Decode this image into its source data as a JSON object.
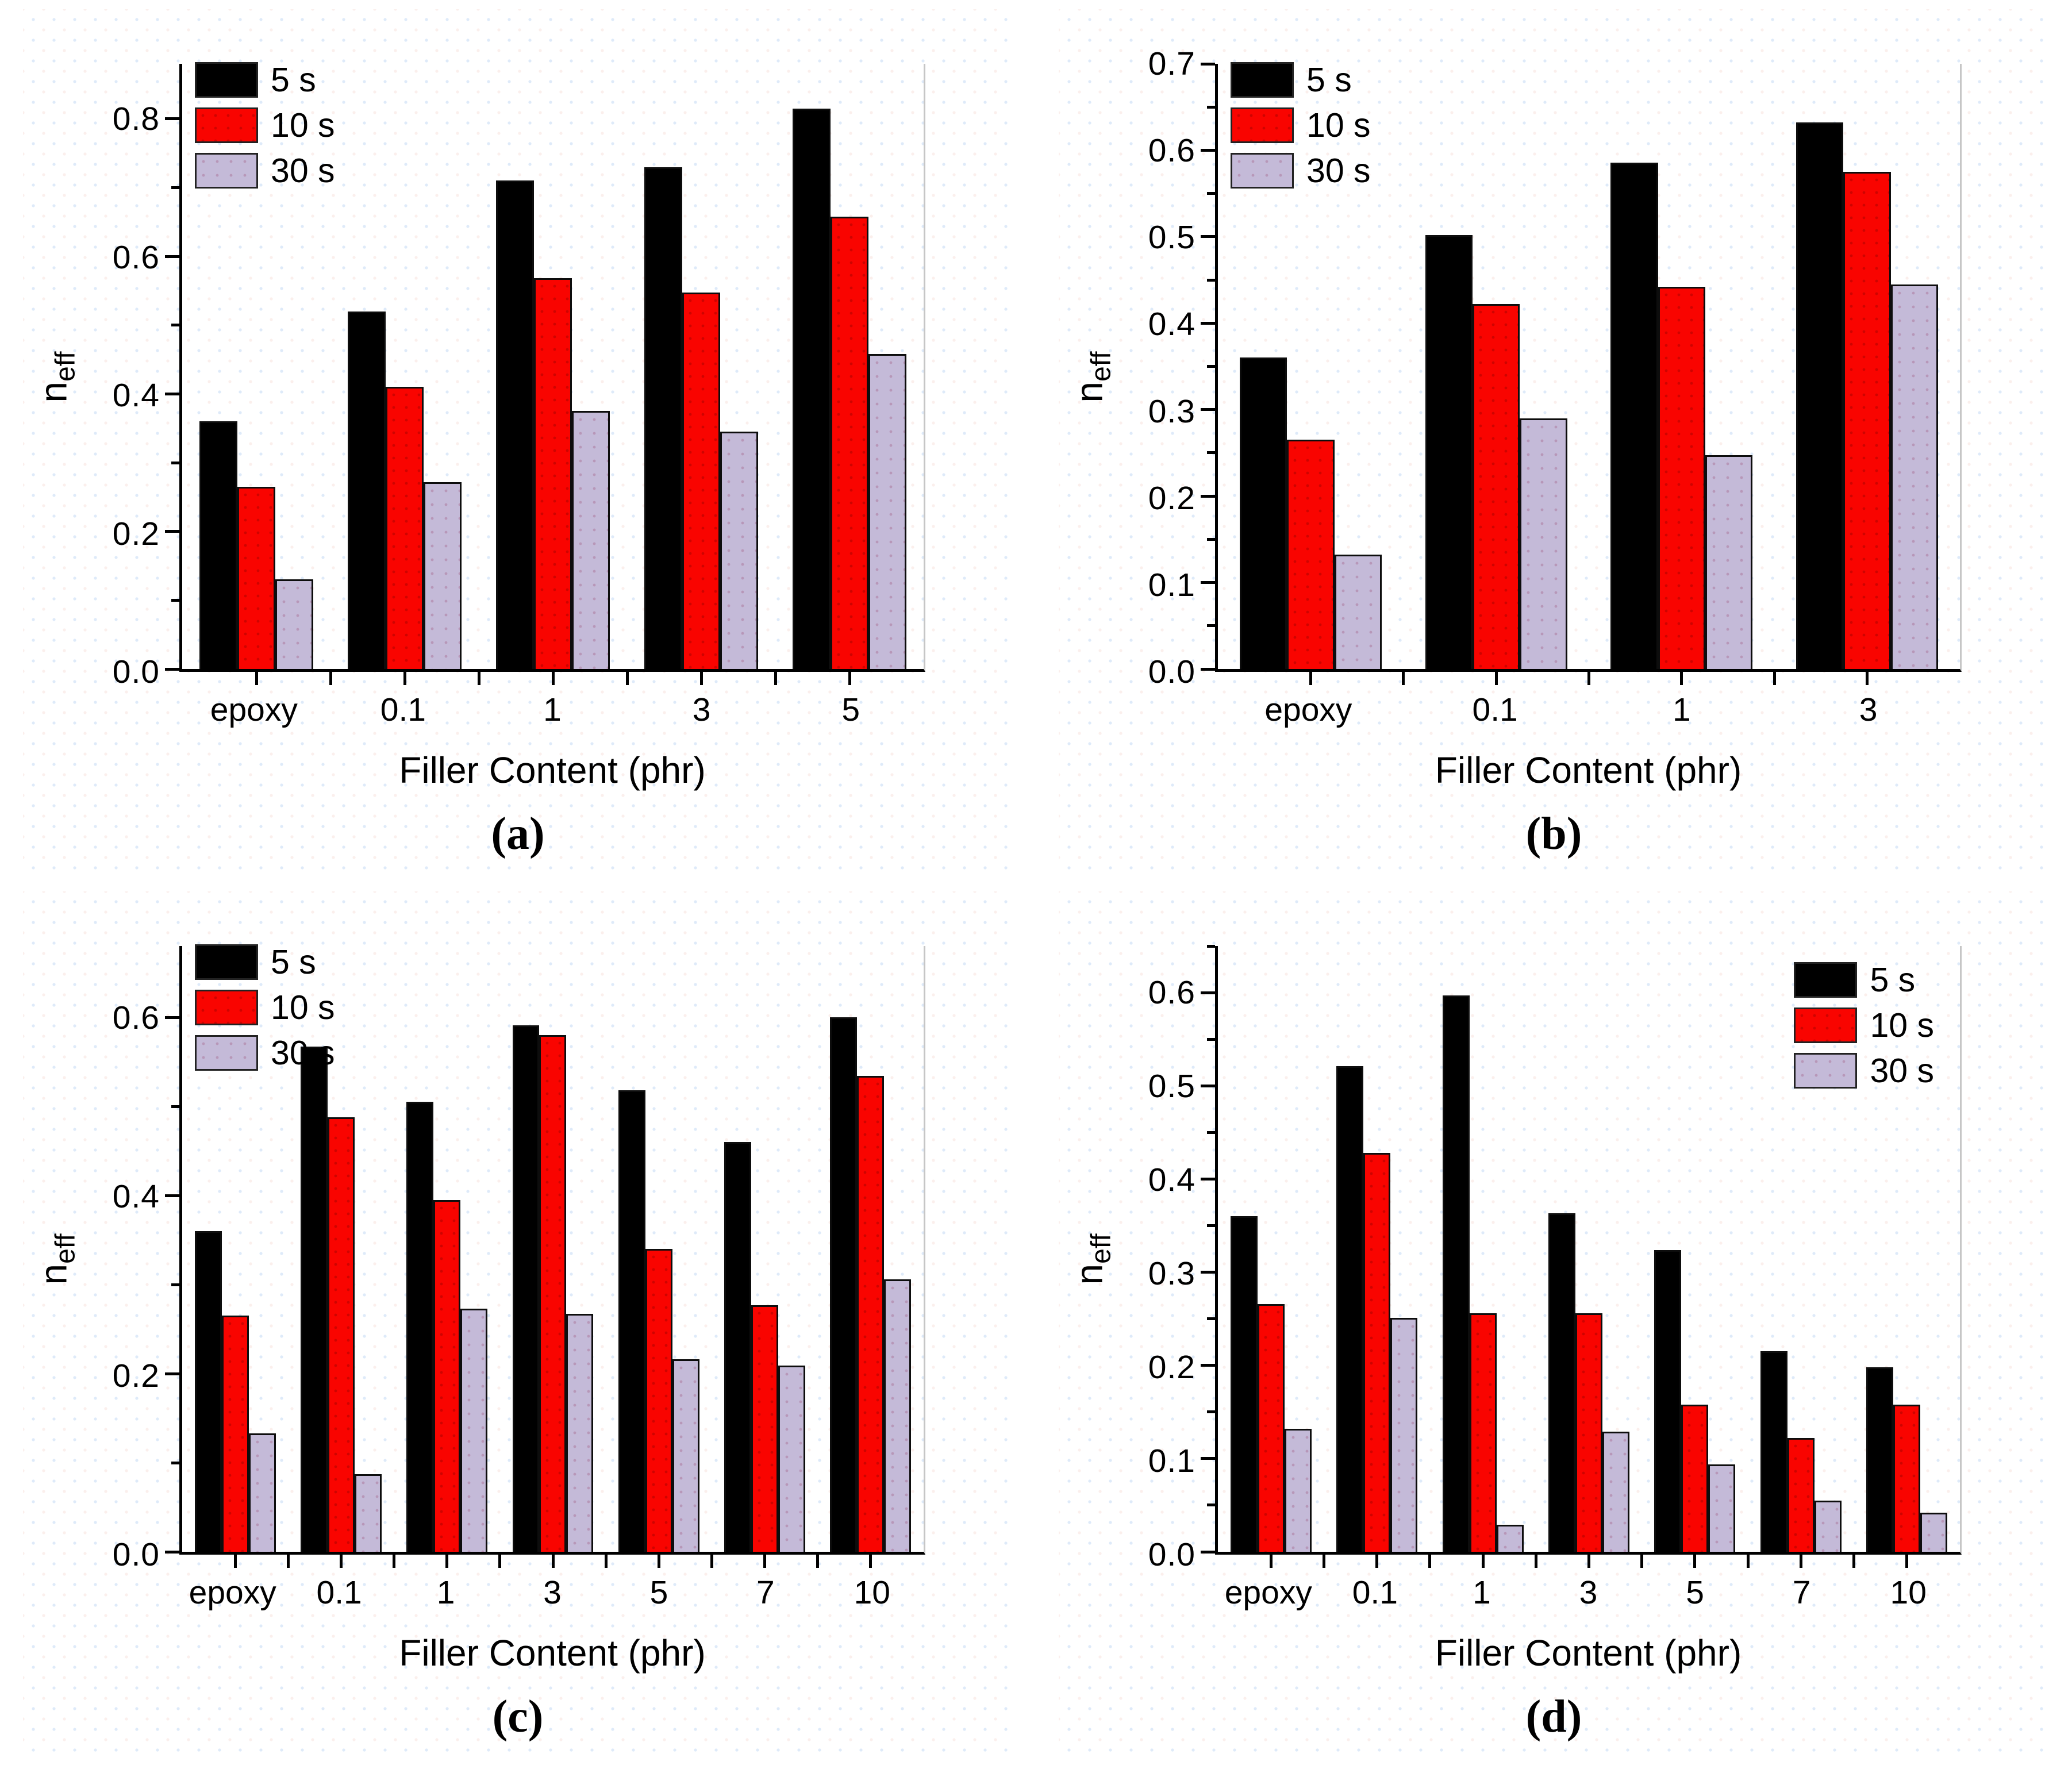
{
  "figure": {
    "xlabel": "Filler Content (phr)",
    "ylabel_base": "n",
    "ylabel_sub": "eff",
    "series_labels": [
      "5 s",
      "10 s",
      "30 s"
    ],
    "colors": {
      "series_5s": "#000000",
      "series_10s": "#f90400",
      "series_30s": "#c4bad8",
      "axis": "#000000",
      "right_frame": "#c6c6c6"
    }
  },
  "chart_data": [
    {
      "type": "bar",
      "panel": "a",
      "caption": "(a)",
      "title": "",
      "xlabel": "Filler Content (phr)",
      "ylabel": "n_eff",
      "categories": [
        "epoxy",
        "0.1",
        "1",
        "3",
        "5"
      ],
      "series": [
        {
          "name": "5 s",
          "values": [
            0.36,
            0.52,
            0.71,
            0.73,
            0.815
          ]
        },
        {
          "name": "10 s",
          "values": [
            0.265,
            0.41,
            0.568,
            0.547,
            0.658
          ]
        },
        {
          "name": "30 s",
          "values": [
            0.13,
            0.272,
            0.375,
            0.345,
            0.458
          ]
        }
      ],
      "ylim": [
        0,
        0.88
      ],
      "ytick_major": 0.2,
      "ytick_minor": 0.1,
      "grid": false,
      "legend_position": "top-left"
    },
    {
      "type": "bar",
      "panel": "b",
      "caption": "(b)",
      "title": "",
      "xlabel": "Filler Content (phr)",
      "ylabel": "n_eff",
      "categories": [
        "epoxy",
        "0.1",
        "1",
        "3"
      ],
      "series": [
        {
          "name": "5 s",
          "values": [
            0.36,
            0.502,
            0.586,
            0.632
          ]
        },
        {
          "name": "10 s",
          "values": [
            0.265,
            0.422,
            0.442,
            0.575
          ]
        },
        {
          "name": "30 s",
          "values": [
            0.132,
            0.29,
            0.247,
            0.445
          ]
        }
      ],
      "ylim": [
        0,
        0.7
      ],
      "ytick_major": 0.1,
      "ytick_minor": 0.05,
      "grid": false,
      "legend_position": "top-left"
    },
    {
      "type": "bar",
      "panel": "c",
      "caption": "(c)",
      "title": "",
      "xlabel": "Filler Content (phr)",
      "ylabel": "n_eff",
      "categories": [
        "epoxy",
        "0.1",
        "1",
        "3",
        "5",
        "7",
        "10"
      ],
      "series": [
        {
          "name": "5 s",
          "values": [
            0.36,
            0.567,
            0.505,
            0.591,
            0.518,
            0.46,
            0.6
          ]
        },
        {
          "name": "10 s",
          "values": [
            0.265,
            0.488,
            0.395,
            0.58,
            0.34,
            0.277,
            0.534
          ]
        },
        {
          "name": "30 s",
          "values": [
            0.133,
            0.087,
            0.273,
            0.267,
            0.216,
            0.209,
            0.306
          ]
        }
      ],
      "ylim": [
        0,
        0.68
      ],
      "ytick_major": 0.2,
      "ytick_minor": 0.1,
      "grid": false,
      "legend_position": "top-left"
    },
    {
      "type": "bar",
      "panel": "d",
      "caption": "(d)",
      "title": "",
      "xlabel": "Filler Content (phr)",
      "ylabel": "n_eff",
      "categories": [
        "epoxy",
        "0.1",
        "1",
        "3",
        "5",
        "7",
        "10"
      ],
      "series": [
        {
          "name": "5 s",
          "values": [
            0.36,
            0.521,
            0.597,
            0.363,
            0.324,
            0.215,
            0.198
          ]
        },
        {
          "name": "10 s",
          "values": [
            0.266,
            0.428,
            0.256,
            0.256,
            0.158,
            0.122,
            0.158
          ]
        },
        {
          "name": "30 s",
          "values": [
            0.132,
            0.251,
            0.029,
            0.129,
            0.094,
            0.055,
            0.042
          ]
        }
      ],
      "ylim": [
        0,
        0.65
      ],
      "ytick_major": 0.1,
      "ytick_minor": 0.05,
      "grid": false,
      "legend_position": "top-right"
    }
  ]
}
